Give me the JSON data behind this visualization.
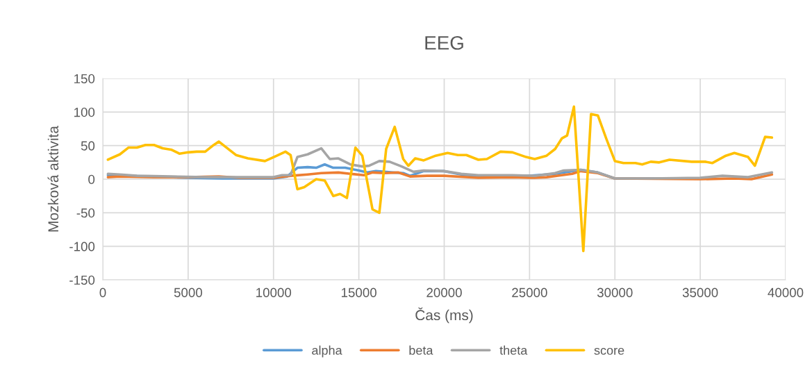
{
  "chart_data": {
    "type": "line",
    "title": "EEG",
    "xlabel": "Čas (ms)",
    "ylabel": "Mozková aktivita",
    "xlim": [
      0,
      40000
    ],
    "xticks": [
      0,
      5000,
      10000,
      15000,
      20000,
      25000,
      30000,
      35000,
      40000
    ],
    "ylim": [
      -150,
      150
    ],
    "yticks": [
      -150,
      -100,
      -50,
      0,
      50,
      100,
      150
    ],
    "grid": true,
    "legend": "bottom",
    "marker": "none",
    "line_style": "solid",
    "series": [
      {
        "name": "alpha",
        "color": "#5b9bd5",
        "x": [
          300,
          1000,
          3000,
          5000,
          7000,
          10000,
          10800,
          11400,
          12000,
          12500,
          13000,
          13500,
          14200,
          15000,
          15500,
          16000,
          17000,
          17600,
          18000,
          18800,
          20000,
          21000,
          22000,
          25000,
          26500,
          27500,
          28000,
          29000,
          30000,
          35000
        ],
        "values": [
          6,
          5,
          4,
          2,
          1,
          1,
          4,
          17,
          18,
          17,
          22,
          17,
          17,
          13,
          10,
          12,
          10,
          9,
          5,
          12,
          12,
          7,
          5,
          5,
          8,
          12,
          14,
          10,
          1,
          1
        ]
      },
      {
        "name": "beta",
        "color": "#ed7d31",
        "x": [
          300,
          1000,
          3000,
          5000,
          6800,
          8000,
          10000,
          11000,
          12000,
          12800,
          13800,
          14500,
          15300,
          15800,
          16500,
          17300,
          18000,
          19000,
          20000,
          22000,
          24000,
          25300,
          26000,
          27500,
          28000,
          29000,
          30000,
          35000,
          37000,
          38000,
          39200
        ],
        "values": [
          3,
          4,
          3,
          3,
          4,
          2,
          2,
          5,
          7,
          9,
          10,
          8,
          6,
          10,
          9,
          10,
          4,
          5,
          5,
          2,
          3,
          2,
          3,
          8,
          12,
          9,
          1,
          0,
          1,
          0,
          7
        ]
      },
      {
        "name": "theta",
        "color": "#a5a5a5",
        "x": [
          300,
          1000,
          2000,
          4000,
          6000,
          8000,
          10000,
          10500,
          11000,
          11400,
          12000,
          12800,
          13300,
          13800,
          14500,
          15200,
          15600,
          16200,
          16800,
          17500,
          18200,
          18800,
          20000,
          21000,
          22000,
          24000,
          25300,
          26500,
          27000,
          28000,
          29000,
          30000,
          32000,
          35000,
          36300,
          37800,
          39200
        ],
        "values": [
          8,
          7,
          5,
          4,
          3,
          3,
          3,
          6,
          6,
          33,
          37,
          46,
          30,
          31,
          22,
          19,
          20,
          27,
          26,
          19,
          11,
          13,
          12,
          8,
          6,
          6,
          5,
          9,
          13,
          14,
          10,
          1,
          1,
          2,
          5,
          3,
          10
        ]
      },
      {
        "name": "score",
        "color": "#ffc000",
        "x": [
          300,
          1000,
          1500,
          2000,
          2500,
          3000,
          3500,
          4000,
          4500,
          5000,
          5500,
          6000,
          6500,
          6800,
          7200,
          7800,
          8500,
          9500,
          10200,
          10700,
          11000,
          11400,
          11800,
          12500,
          13000,
          13500,
          13900,
          14300,
          14800,
          15200,
          15800,
          16200,
          16600,
          17100,
          17600,
          17900,
          18300,
          18800,
          19500,
          20200,
          20800,
          21300,
          22000,
          22500,
          23300,
          24000,
          24800,
          25300,
          26000,
          26500,
          26900,
          27200,
          27600,
          28150,
          28600,
          29000,
          29500,
          30000,
          30500,
          31200,
          31600,
          32100,
          32600,
          33200,
          34500,
          35300,
          35700,
          36500,
          37000,
          37800,
          38200,
          38800,
          39200
        ],
        "values": [
          29,
          37,
          47,
          47,
          51,
          51,
          46,
          44,
          38,
          40,
          41,
          41,
          51,
          56,
          48,
          36,
          31,
          27,
          35,
          41,
          36,
          -15,
          -12,
          0,
          -2,
          -25,
          -22,
          -28,
          47,
          35,
          -45,
          -50,
          45,
          78,
          30,
          20,
          31,
          28,
          35,
          39,
          36,
          36,
          29,
          30,
          41,
          40,
          33,
          30,
          35,
          45,
          61,
          65,
          108,
          -107,
          97,
          95,
          60,
          27,
          24,
          24,
          22,
          26,
          25,
          29,
          26,
          26,
          24,
          35,
          39,
          33,
          20,
          63,
          62
        ]
      }
    ]
  }
}
